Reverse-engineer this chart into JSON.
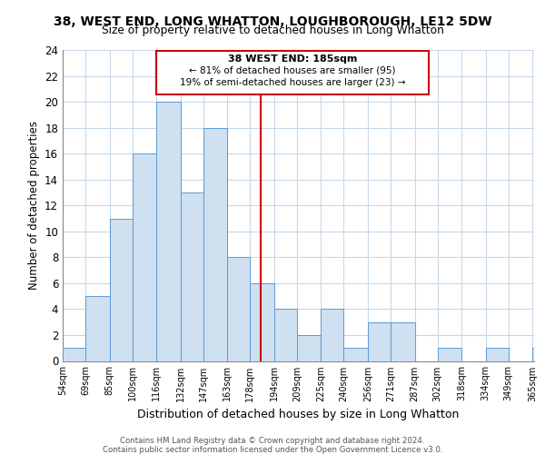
{
  "title1": "38, WEST END, LONG WHATTON, LOUGHBOROUGH, LE12 5DW",
  "title2": "Size of property relative to detached houses in Long Whatton",
  "xlabel": "Distribution of detached houses by size in Long Whatton",
  "ylabel": "Number of detached properties",
  "bin_labels": [
    "54sqm",
    "69sqm",
    "85sqm",
    "100sqm",
    "116sqm",
    "132sqm",
    "147sqm",
    "163sqm",
    "178sqm",
    "194sqm",
    "209sqm",
    "225sqm",
    "240sqm",
    "256sqm",
    "271sqm",
    "287sqm",
    "302sqm",
    "318sqm",
    "334sqm",
    "349sqm",
    "365sqm"
  ],
  "bin_edges": [
    54,
    69,
    85,
    100,
    116,
    132,
    147,
    163,
    178,
    194,
    209,
    225,
    240,
    256,
    271,
    287,
    302,
    318,
    334,
    349,
    365
  ],
  "counts": [
    1,
    5,
    11,
    16,
    20,
    13,
    18,
    8,
    6,
    4,
    2,
    4,
    1,
    3,
    3,
    0,
    1,
    0,
    1,
    0,
    1
  ],
  "bar_color": "#cfe0f0",
  "bar_edge_color": "#5b9bd5",
  "grid_color": "#c8d8e8",
  "vline_x": 185,
  "vline_color": "#cc0000",
  "annotation_title": "38 WEST END: 185sqm",
  "annotation_line1": "← 81% of detached houses are smaller (95)",
  "annotation_line2": "19% of semi-detached houses are larger (23) →",
  "annotation_box_color": "#ffffff",
  "annotation_box_edge": "#cc0000",
  "ylim": [
    0,
    24
  ],
  "yticks": [
    0,
    2,
    4,
    6,
    8,
    10,
    12,
    14,
    16,
    18,
    20,
    22,
    24
  ],
  "footer1": "Contains HM Land Registry data © Crown copyright and database right 2024.",
  "footer2": "Contains public sector information licensed under the Open Government Licence v3.0."
}
